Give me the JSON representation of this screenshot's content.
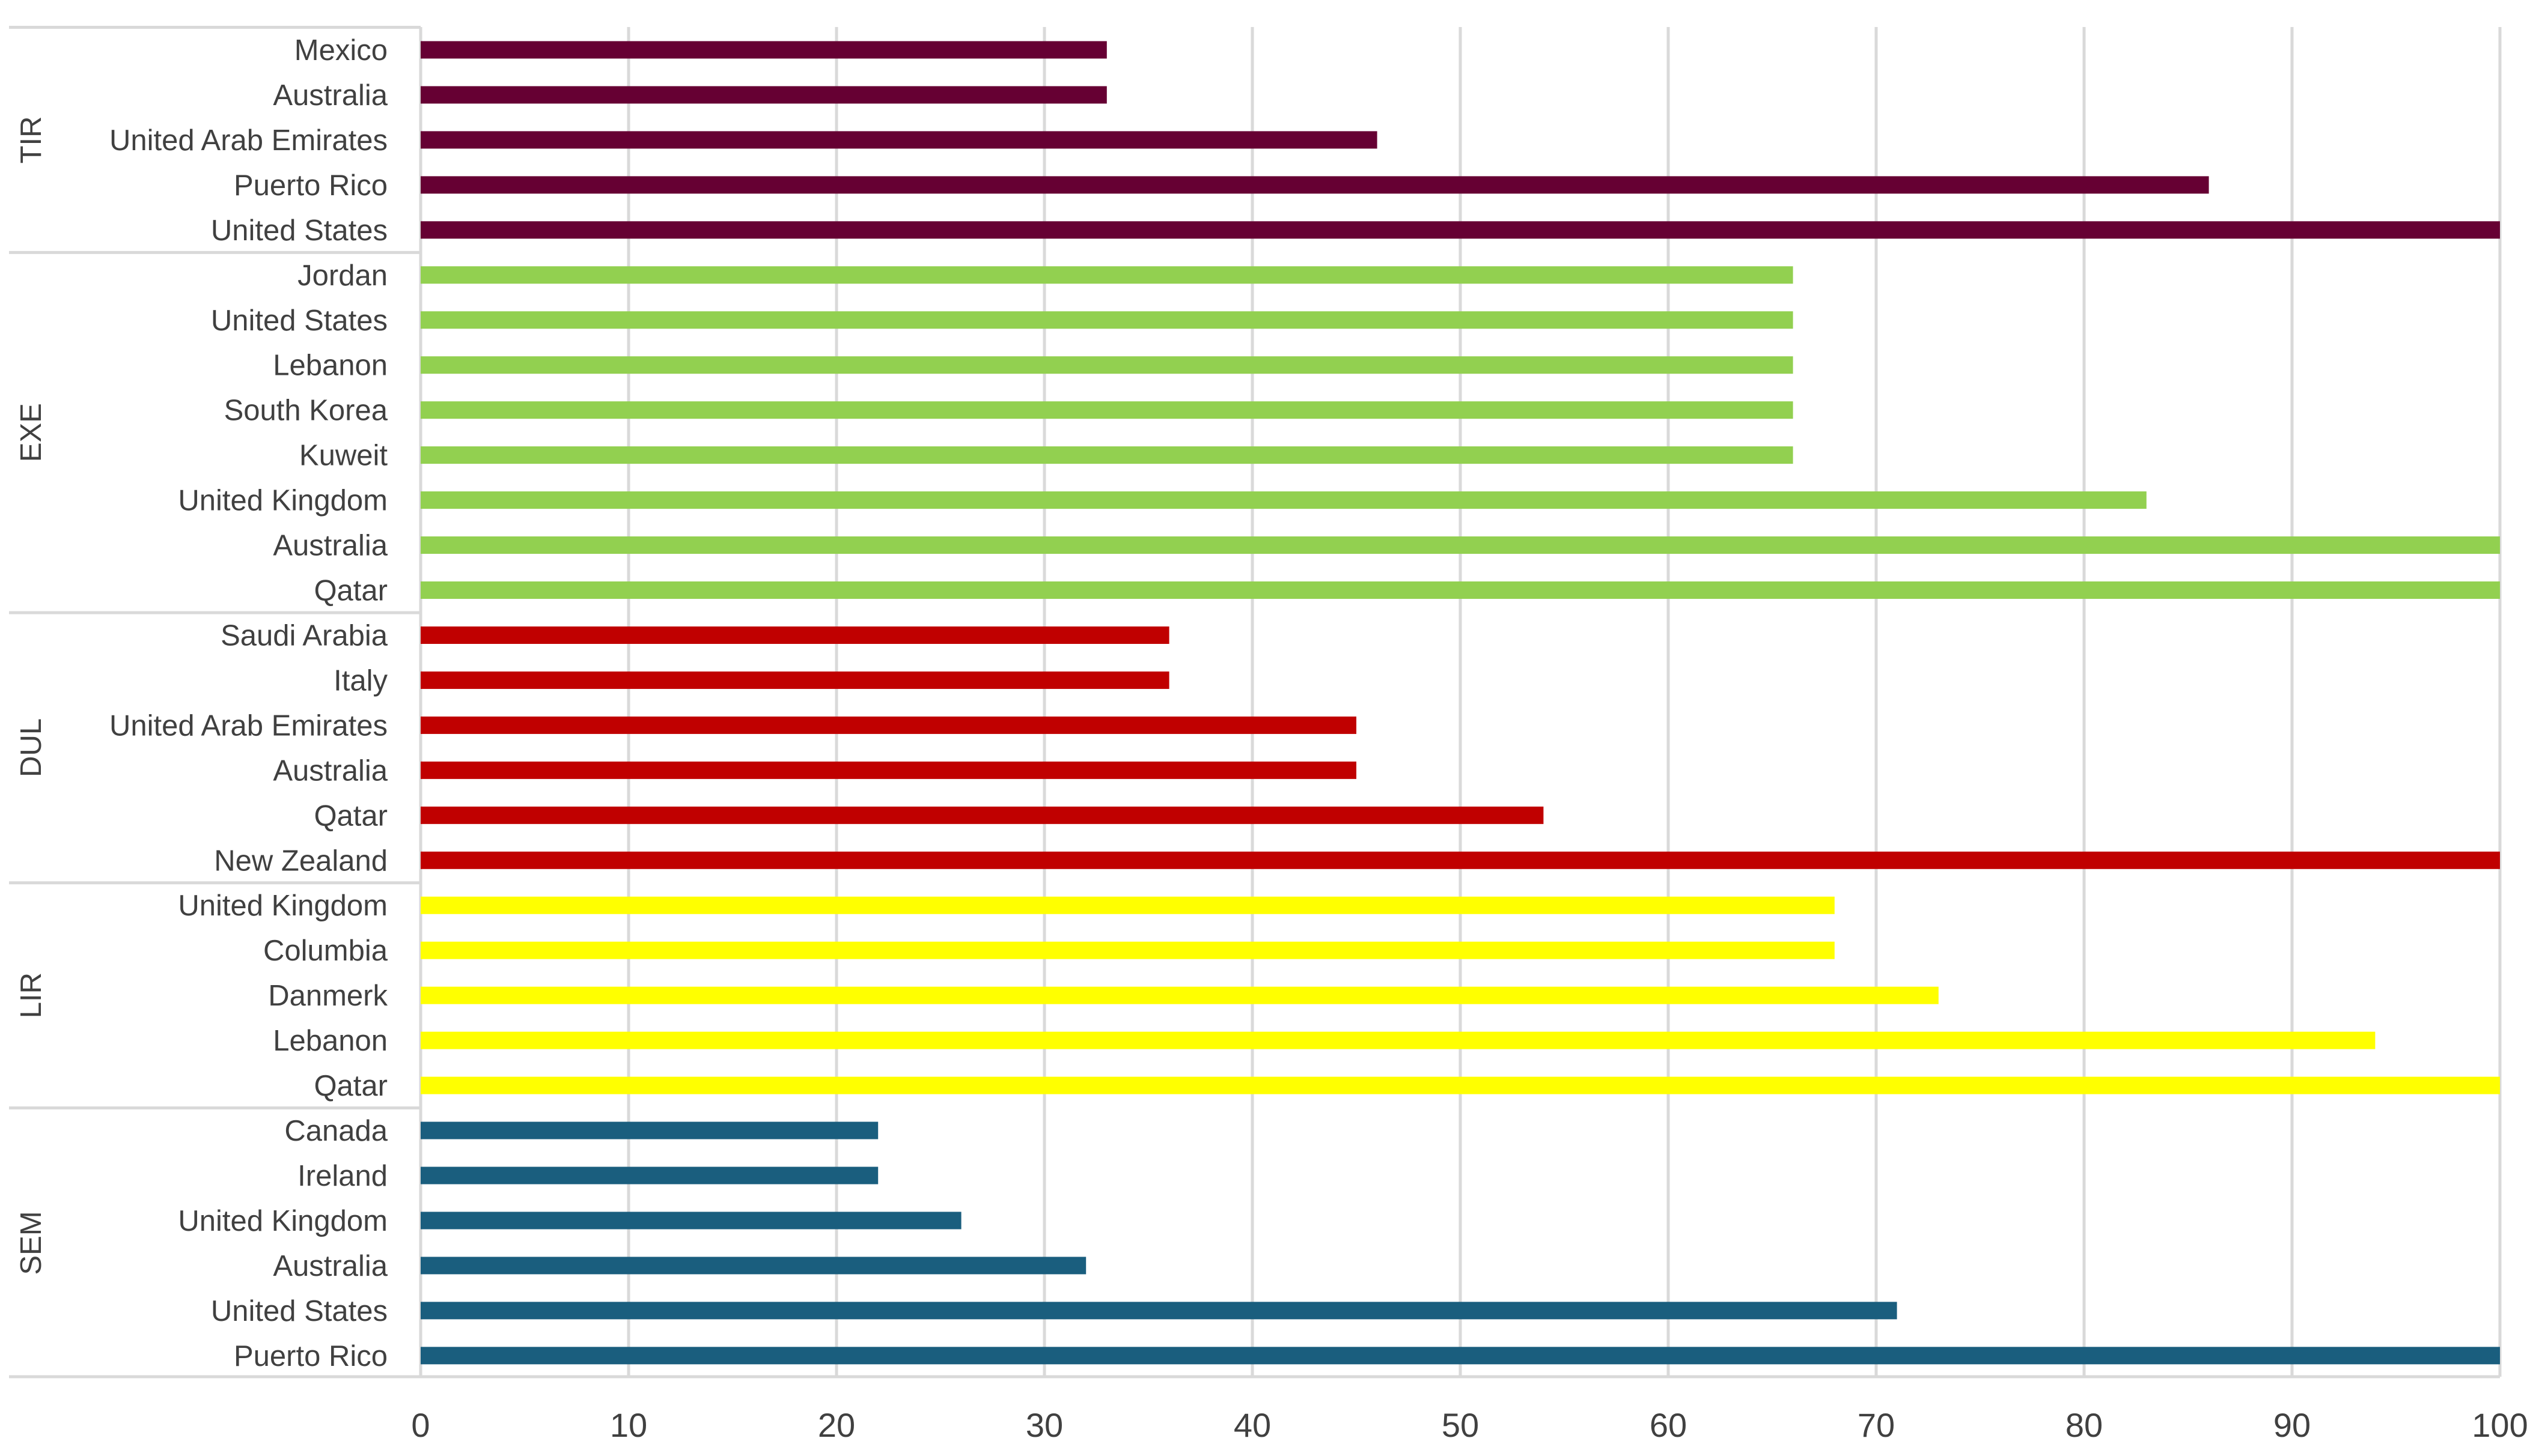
{
  "chart_data": {
    "type": "bar",
    "orientation": "horizontal",
    "title": "",
    "xlabel": "",
    "ylabel": "",
    "xlim": [
      0,
      100
    ],
    "x_ticks": [
      "0",
      "10",
      "20",
      "30",
      "40",
      "50",
      "60",
      "70",
      "80",
      "90",
      "100"
    ],
    "grid": true,
    "legend": "none",
    "groups": [
      {
        "name": "TIR",
        "color": "#660033",
        "categories": [
          "Mexico",
          "Australia",
          "United Arab Emirates",
          "Puerto Rico",
          "United States"
        ],
        "values": [
          33,
          33,
          46,
          86,
          100
        ]
      },
      {
        "name": "EXE",
        "color": "#92d050",
        "categories": [
          "Jordan",
          "United States",
          "Lebanon",
          "South Korea",
          "Kuweit",
          "United Kingdom",
          "Australia",
          "Qatar"
        ],
        "values": [
          66,
          66,
          66,
          66,
          66,
          83,
          100,
          100
        ]
      },
      {
        "name": "DUL",
        "color": "#c00000",
        "categories": [
          "Saudi Arabia",
          "Italy",
          "United Arab Emirates",
          "Australia",
          "Qatar",
          "New Zealand"
        ],
        "values": [
          36,
          36,
          45,
          45,
          54,
          100
        ]
      },
      {
        "name": "LIR",
        "color": "#ffff00",
        "categories": [
          "United Kingdom",
          "Columbia",
          "Danmerk",
          "Lebanon",
          "Qatar"
        ],
        "values": [
          68,
          68,
          73,
          94,
          100
        ]
      },
      {
        "name": "SEM",
        "color": "#1a5e7e",
        "categories": [
          "Canada",
          "Ireland",
          "United Kingdom",
          "Australia",
          "United States",
          "Puerto Rico"
        ],
        "values": [
          22,
          22,
          26,
          32,
          71,
          100
        ]
      }
    ]
  },
  "style": {
    "gridline_color": "#d9d9d9",
    "axis_color": "#d9d9d9",
    "text_color": "#404040"
  }
}
